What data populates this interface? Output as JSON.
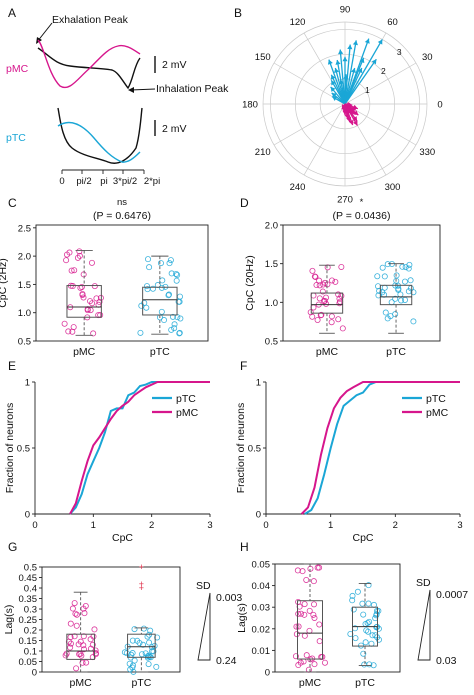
{
  "colors": {
    "pMC": "#d6168c",
    "pTC": "#1aa6d6",
    "box": "#555555"
  },
  "panels": {
    "A": "A",
    "B": "B",
    "C": "C",
    "D": "D",
    "E": "E",
    "F": "F",
    "G": "G",
    "H": "H"
  },
  "panel_a": {
    "exhalation_label": "Exhalation Peak",
    "inhalation_label": "Inhalation Peak",
    "pmc_label": "pMC",
    "ptc_label": "pTC",
    "scale_label": "2 mV",
    "x_ticks": [
      "0",
      "pi/2",
      "pi",
      "3*pi/2",
      "2*pi"
    ]
  },
  "polar": {
    "angle_labels": [
      "90",
      "60",
      "30",
      "0",
      "330",
      "300",
      "270",
      "240",
      "210",
      "180",
      "150",
      "120"
    ],
    "radius_labels": [
      "1",
      "2",
      "3"
    ]
  },
  "chart_data": [
    {
      "panel": "C",
      "type": "box",
      "ylabel": "CpC (2Hz)",
      "categories": [
        "pMC",
        "pTC"
      ],
      "yticks": [
        "0.5",
        "1.0",
        "1.5",
        "2.0",
        "2.5"
      ],
      "ylim": [
        0.5,
        2.55
      ],
      "annotation": [
        "ns",
        "(P = 0.6476)"
      ],
      "boxes": [
        {
          "name": "pMC",
          "min": 0.6,
          "q1": 0.92,
          "median": 1.1,
          "q3": 1.48,
          "max": 2.1
        },
        {
          "name": "pTC",
          "min": 0.62,
          "q1": 0.96,
          "median": 1.23,
          "q3": 1.45,
          "max": 2.0
        }
      ]
    },
    {
      "panel": "D",
      "type": "box",
      "ylabel": "CpC (20Hz)",
      "categories": [
        "pMC",
        "pTC"
      ],
      "yticks": [
        "0.5",
        "1.0",
        "1.5",
        "2.0"
      ],
      "ylim": [
        0.5,
        2.0
      ],
      "annotation": [
        "*",
        "(P = 0.0436)"
      ],
      "boxes": [
        {
          "name": "pMC",
          "min": 0.6,
          "q1": 0.86,
          "median": 0.97,
          "q3": 1.12,
          "max": 1.48
        },
        {
          "name": "pTC",
          "min": 0.6,
          "q1": 0.97,
          "median": 1.07,
          "q3": 1.22,
          "max": 1.5
        }
      ]
    },
    {
      "panel": "E",
      "type": "line",
      "xlabel": "CpC",
      "ylabel": "Fraction of neurons",
      "xticks": [
        "0",
        "1",
        "2",
        "3"
      ],
      "yticks": [
        "0",
        "0.5",
        "1"
      ],
      "xlim": [
        0,
        3
      ],
      "ylim": [
        0,
        1
      ],
      "legend": "top-right",
      "series": [
        {
          "name": "pTC",
          "points": [
            [
              0.6,
              0
            ],
            [
              0.7,
              0.05
            ],
            [
              0.8,
              0.15
            ],
            [
              0.9,
              0.3
            ],
            [
              1.0,
              0.4
            ],
            [
              1.1,
              0.5
            ],
            [
              1.2,
              0.62
            ],
            [
              1.3,
              0.78
            ],
            [
              1.4,
              0.8
            ],
            [
              1.5,
              0.8
            ],
            [
              1.6,
              0.9
            ],
            [
              1.7,
              0.92
            ],
            [
              1.8,
              0.97
            ],
            [
              1.9,
              0.98
            ],
            [
              2.0,
              1.0
            ],
            [
              3.0,
              1.0
            ]
          ]
        },
        {
          "name": "pMC",
          "points": [
            [
              0.6,
              0
            ],
            [
              0.7,
              0.08
            ],
            [
              0.8,
              0.25
            ],
            [
              0.9,
              0.4
            ],
            [
              1.0,
              0.52
            ],
            [
              1.1,
              0.58
            ],
            [
              1.2,
              0.65
            ],
            [
              1.3,
              0.72
            ],
            [
              1.4,
              0.78
            ],
            [
              1.5,
              0.82
            ],
            [
              1.6,
              0.85
            ],
            [
              1.7,
              0.9
            ],
            [
              1.8,
              0.93
            ],
            [
              1.9,
              0.96
            ],
            [
              2.1,
              1.0
            ],
            [
              3.0,
              1.0
            ]
          ]
        }
      ]
    },
    {
      "panel": "F",
      "type": "line",
      "xlabel": "CpC",
      "ylabel": "Fraction of neurons",
      "xticks": [
        "0",
        "1",
        "2",
        "3"
      ],
      "yticks": [
        "0",
        "0.5",
        "1"
      ],
      "xlim": [
        0,
        3
      ],
      "ylim": [
        0,
        1
      ],
      "legend": "top-right",
      "series": [
        {
          "name": "pTC",
          "points": [
            [
              0.6,
              0
            ],
            [
              0.7,
              0.03
            ],
            [
              0.8,
              0.12
            ],
            [
              0.9,
              0.3
            ],
            [
              1.0,
              0.5
            ],
            [
              1.1,
              0.68
            ],
            [
              1.2,
              0.82
            ],
            [
              1.3,
              0.86
            ],
            [
              1.4,
              0.9
            ],
            [
              1.5,
              0.92
            ],
            [
              1.6,
              0.98
            ],
            [
              1.7,
              1.0
            ],
            [
              3.0,
              1.0
            ]
          ]
        },
        {
          "name": "pMC",
          "points": [
            [
              0.55,
              0
            ],
            [
              0.65,
              0.05
            ],
            [
              0.75,
              0.2
            ],
            [
              0.85,
              0.45
            ],
            [
              0.95,
              0.65
            ],
            [
              1.05,
              0.8
            ],
            [
              1.15,
              0.88
            ],
            [
              1.25,
              0.93
            ],
            [
              1.35,
              0.96
            ],
            [
              1.5,
              1.0
            ],
            [
              3.0,
              1.0
            ]
          ]
        }
      ]
    },
    {
      "panel": "G",
      "type": "box",
      "ylabel": "Lag(s)",
      "categories": [
        "pMC",
        "pTC"
      ],
      "yticks": [
        "0",
        "0.05",
        "0.1",
        "0.15",
        "0.2",
        "0.25",
        "0.3",
        "0.35",
        "0.4",
        "0.45",
        "0.5"
      ],
      "ylim": [
        0,
        0.5
      ],
      "sd_label": "SD",
      "sd_values": [
        "0.003",
        "0.24"
      ],
      "boxes": [
        {
          "name": "pMC",
          "min": 0.0,
          "q1": 0.06,
          "median": 0.1,
          "q3": 0.18,
          "max": 0.38
        },
        {
          "name": "pTC",
          "min": 0.0,
          "q1": 0.07,
          "median": 0.12,
          "q3": 0.18,
          "max": 0.21
        }
      ],
      "outliers": [
        {
          "name": "pTC",
          "values": [
            0.4,
            0.42,
            0.5
          ]
        }
      ]
    },
    {
      "panel": "H",
      "type": "box",
      "ylabel": "Lag(s)",
      "categories": [
        "pMC",
        "pTC"
      ],
      "yticks": [
        "0",
        "0.01",
        "0.02",
        "0.03",
        "0.04",
        "0.05"
      ],
      "ylim": [
        0,
        0.05
      ],
      "sd_label": "SD",
      "sd_values": [
        "0.0007",
        "0.03"
      ],
      "boxes": [
        {
          "name": "pMC",
          "min": 0.0,
          "q1": 0.006,
          "median": 0.018,
          "q3": 0.033,
          "max": 0.05
        },
        {
          "name": "pTC",
          "min": 0.003,
          "q1": 0.012,
          "median": 0.021,
          "q3": 0.03,
          "max": 0.041
        }
      ]
    }
  ]
}
